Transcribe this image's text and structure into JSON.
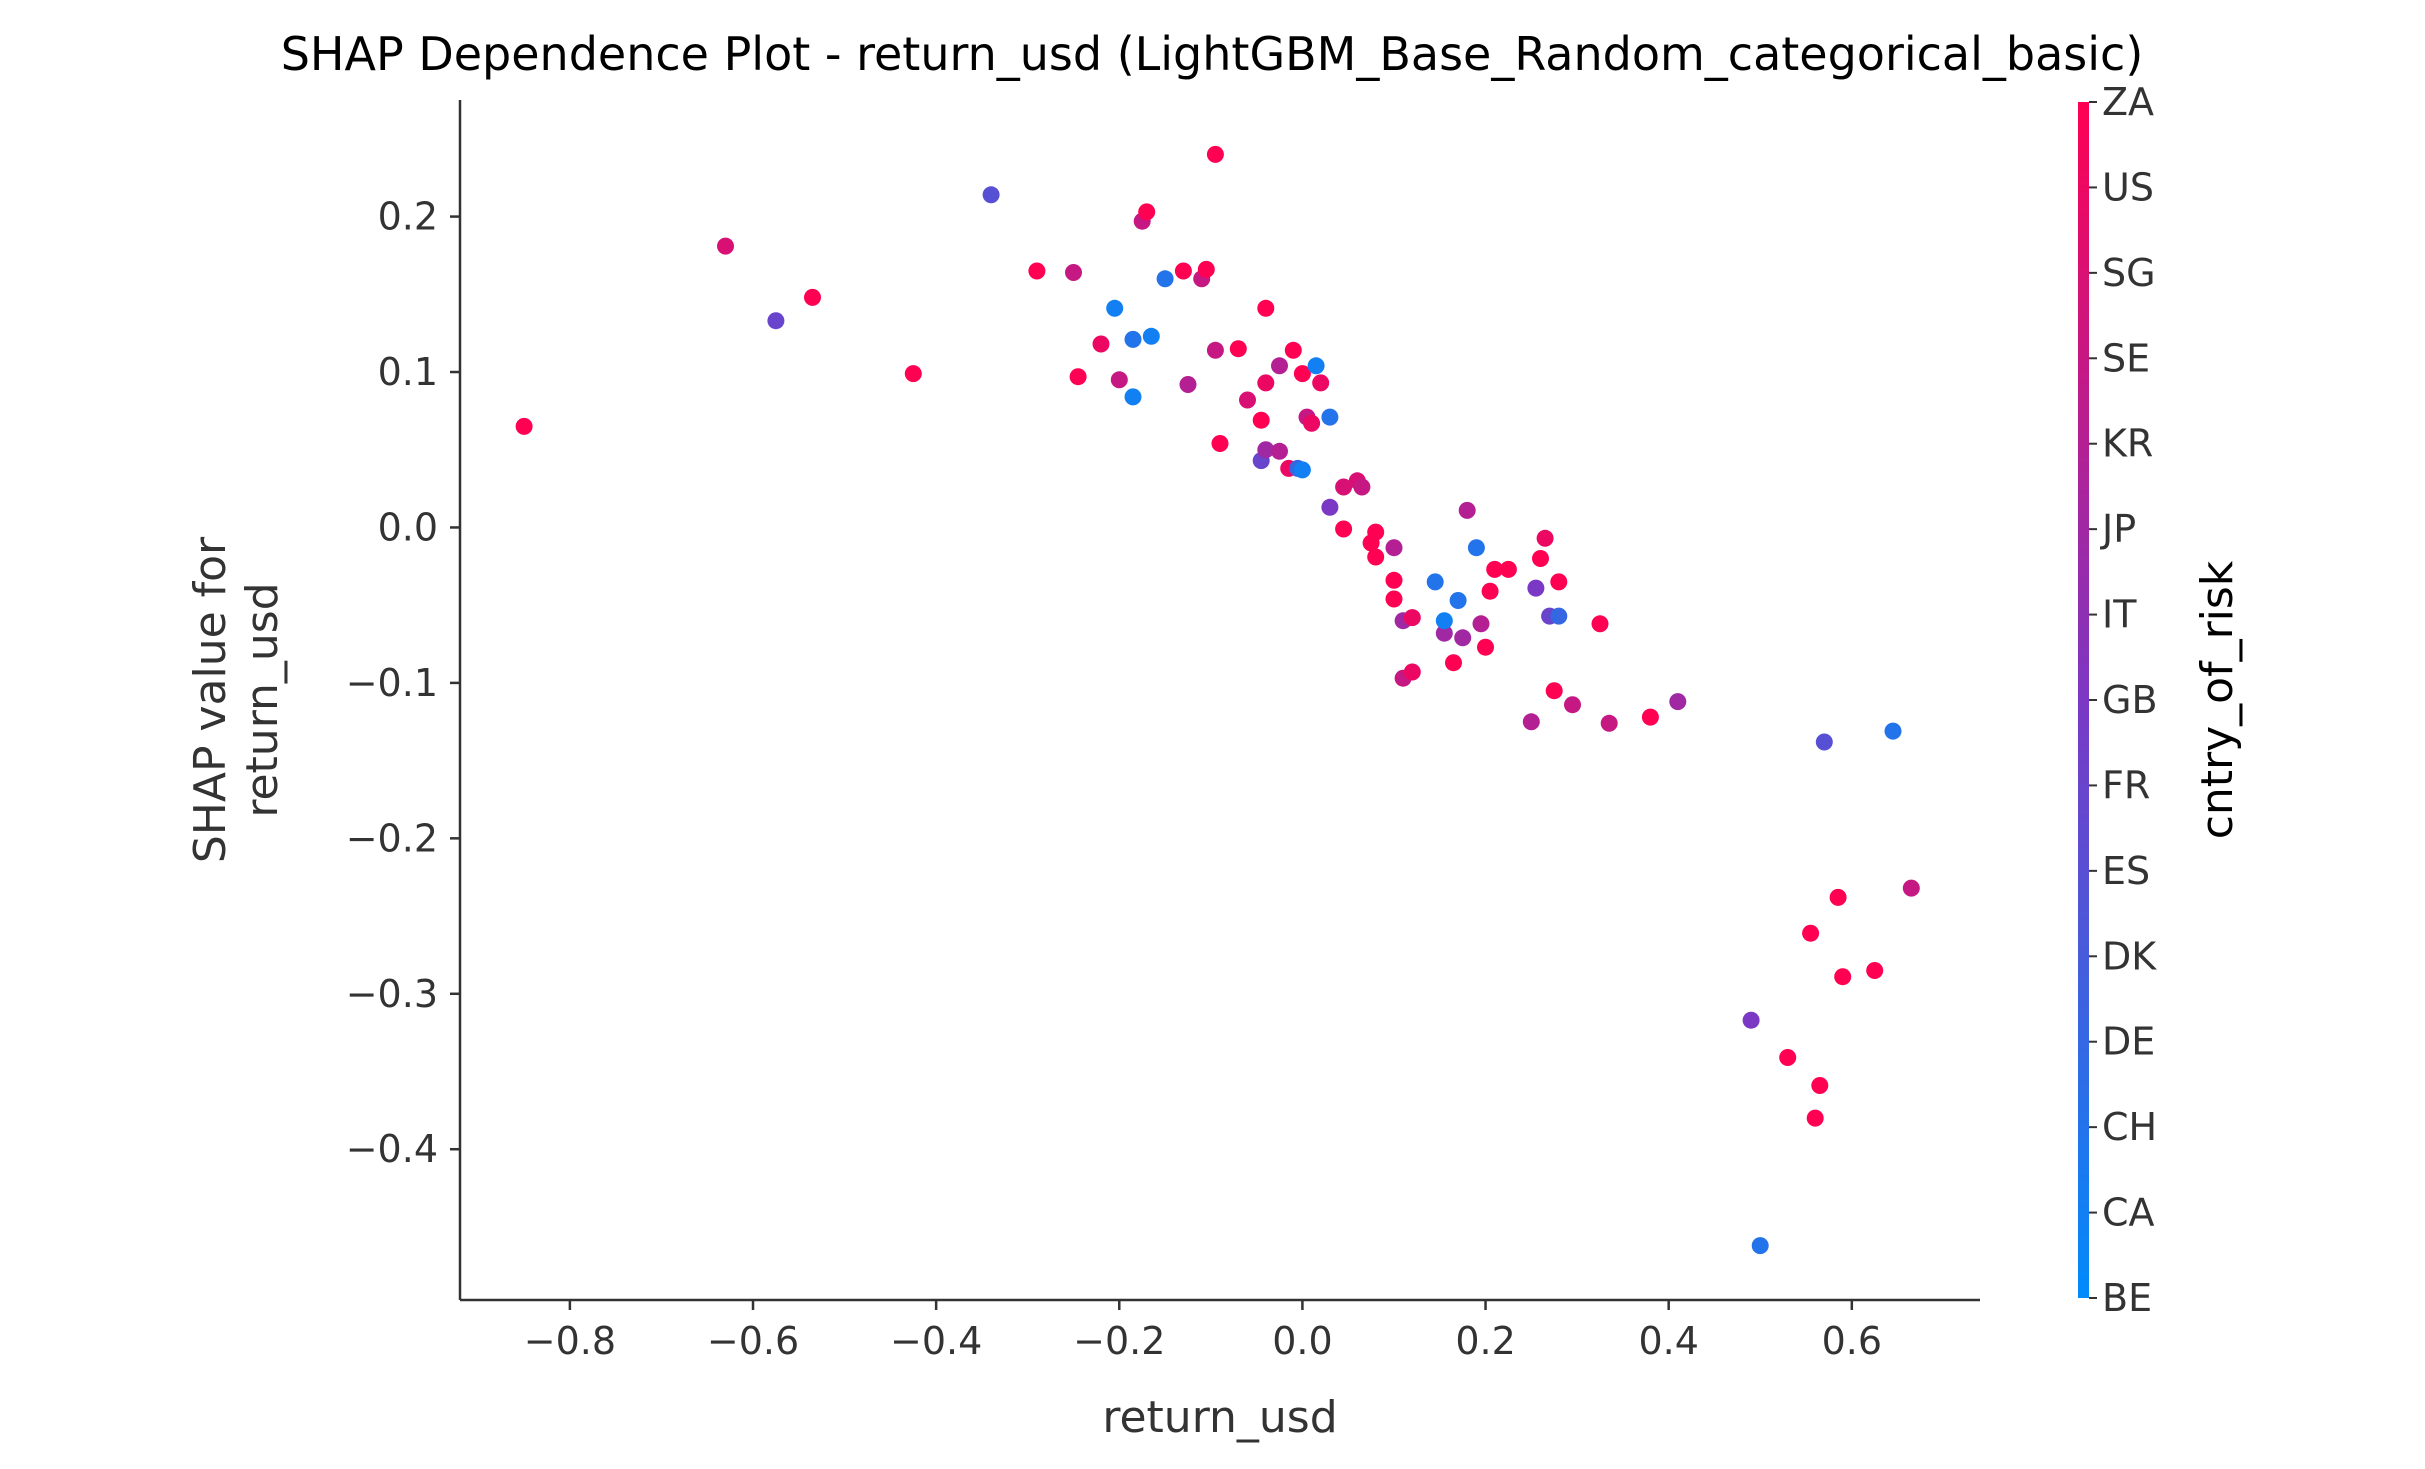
{
  "chart_data": {
    "type": "scatter",
    "title": "SHAP Dependence Plot - return_usd (LightGBM_Base_Random_categorical_basic)",
    "xlabel": "return_usd",
    "ylabel": "SHAP value for\nreturn_usd",
    "xlim": [
      -0.92,
      0.74
    ],
    "ylim": [
      -0.497,
      0.275
    ],
    "x_ticks": [
      -0.8,
      -0.6,
      -0.4,
      -0.2,
      0.0,
      0.2,
      0.4,
      0.6
    ],
    "y_ticks": [
      0.2,
      0.1,
      0.0,
      -0.1,
      -0.2,
      -0.3,
      -0.4
    ],
    "x_tick_labels": [
      "−0.8",
      "−0.6",
      "−0.4",
      "−0.2",
      "0.0",
      "0.2",
      "0.4",
      "0.6"
    ],
    "y_tick_labels": [
      "0.2",
      "0.1",
      "0.0",
      "−0.1",
      "−0.2",
      "−0.3",
      "−0.4"
    ],
    "grid": false,
    "colorbar": {
      "title": "cntry_of_risk",
      "categories": [
        "BE",
        "CA",
        "CH",
        "DE",
        "DK",
        "ES",
        "FR",
        "GB",
        "IT",
        "JP",
        "KR",
        "SE",
        "SG",
        "US",
        "ZA"
      ],
      "color_low": "#008bfb",
      "color_high": "#ff0052"
    },
    "points": [
      {
        "x": -0.85,
        "y": 0.065,
        "c": 14
      },
      {
        "x": -0.63,
        "y": 0.181,
        "c": 12
      },
      {
        "x": -0.575,
        "y": 0.133,
        "c": 6
      },
      {
        "x": -0.535,
        "y": 0.148,
        "c": 14
      },
      {
        "x": -0.425,
        "y": 0.099,
        "c": 14
      },
      {
        "x": -0.34,
        "y": 0.214,
        "c": 5
      },
      {
        "x": -0.29,
        "y": 0.165,
        "c": 14
      },
      {
        "x": -0.25,
        "y": 0.164,
        "c": 11
      },
      {
        "x": -0.245,
        "y": 0.097,
        "c": 14
      },
      {
        "x": -0.22,
        "y": 0.118,
        "c": 13
      },
      {
        "x": -0.205,
        "y": 0.141,
        "c": 1
      },
      {
        "x": -0.2,
        "y": 0.095,
        "c": 11
      },
      {
        "x": -0.185,
        "y": 0.121,
        "c": 2
      },
      {
        "x": -0.185,
        "y": 0.084,
        "c": 1
      },
      {
        "x": -0.175,
        "y": 0.197,
        "c": 11
      },
      {
        "x": -0.17,
        "y": 0.203,
        "c": 14
      },
      {
        "x": -0.165,
        "y": 0.123,
        "c": 1
      },
      {
        "x": -0.15,
        "y": 0.16,
        "c": 2
      },
      {
        "x": -0.13,
        "y": 0.165,
        "c": 14
      },
      {
        "x": -0.125,
        "y": 0.092,
        "c": 10
      },
      {
        "x": -0.11,
        "y": 0.16,
        "c": 11
      },
      {
        "x": -0.105,
        "y": 0.166,
        "c": 14
      },
      {
        "x": -0.095,
        "y": 0.24,
        "c": 14
      },
      {
        "x": -0.095,
        "y": 0.114,
        "c": 11
      },
      {
        "x": -0.09,
        "y": 0.054,
        "c": 14
      },
      {
        "x": -0.07,
        "y": 0.115,
        "c": 14
      },
      {
        "x": -0.06,
        "y": 0.082,
        "c": 12
      },
      {
        "x": -0.045,
        "y": 0.069,
        "c": 14
      },
      {
        "x": -0.045,
        "y": 0.043,
        "c": 6
      },
      {
        "x": -0.04,
        "y": 0.141,
        "c": 14
      },
      {
        "x": -0.04,
        "y": 0.093,
        "c": 13
      },
      {
        "x": -0.04,
        "y": 0.05,
        "c": 9
      },
      {
        "x": -0.025,
        "y": 0.104,
        "c": 10
      },
      {
        "x": -0.025,
        "y": 0.049,
        "c": 10
      },
      {
        "x": -0.015,
        "y": 0.038,
        "c": 13
      },
      {
        "x": -0.01,
        "y": 0.114,
        "c": 14
      },
      {
        "x": -0.005,
        "y": 0.038,
        "c": 3
      },
      {
        "x": 0.0,
        "y": 0.099,
        "c": 14
      },
      {
        "x": 0.0,
        "y": 0.037,
        "c": 1
      },
      {
        "x": 0.005,
        "y": 0.071,
        "c": 11
      },
      {
        "x": 0.01,
        "y": 0.067,
        "c": 13
      },
      {
        "x": 0.015,
        "y": 0.104,
        "c": 1
      },
      {
        "x": 0.02,
        "y": 0.093,
        "c": 13
      },
      {
        "x": 0.03,
        "y": 0.071,
        "c": 2
      },
      {
        "x": 0.03,
        "y": 0.013,
        "c": 7
      },
      {
        "x": 0.045,
        "y": -0.001,
        "c": 14
      },
      {
        "x": 0.045,
        "y": 0.026,
        "c": 12
      },
      {
        "x": 0.06,
        "y": 0.03,
        "c": 12
      },
      {
        "x": 0.065,
        "y": 0.026,
        "c": 11
      },
      {
        "x": 0.075,
        "y": -0.01,
        "c": 14
      },
      {
        "x": 0.08,
        "y": -0.003,
        "c": 14
      },
      {
        "x": 0.08,
        "y": -0.019,
        "c": 14
      },
      {
        "x": 0.1,
        "y": -0.013,
        "c": 10
      },
      {
        "x": 0.1,
        "y": -0.034,
        "c": 14
      },
      {
        "x": 0.1,
        "y": -0.046,
        "c": 14
      },
      {
        "x": 0.11,
        "y": -0.06,
        "c": 9
      },
      {
        "x": 0.11,
        "y": -0.097,
        "c": 11
      },
      {
        "x": 0.12,
        "y": -0.058,
        "c": 13
      },
      {
        "x": 0.12,
        "y": -0.093,
        "c": 13
      },
      {
        "x": 0.145,
        "y": -0.035,
        "c": 2
      },
      {
        "x": 0.155,
        "y": -0.068,
        "c": 9
      },
      {
        "x": 0.155,
        "y": -0.06,
        "c": 1
      },
      {
        "x": 0.165,
        "y": -0.087,
        "c": 14
      },
      {
        "x": 0.17,
        "y": -0.047,
        "c": 2
      },
      {
        "x": 0.175,
        "y": -0.071,
        "c": 9
      },
      {
        "x": 0.18,
        "y": 0.011,
        "c": 10
      },
      {
        "x": 0.19,
        "y": -0.013,
        "c": 2
      },
      {
        "x": 0.195,
        "y": -0.062,
        "c": 10
      },
      {
        "x": 0.2,
        "y": -0.077,
        "c": 14
      },
      {
        "x": 0.205,
        "y": -0.041,
        "c": 14
      },
      {
        "x": 0.21,
        "y": -0.027,
        "c": 14
      },
      {
        "x": 0.225,
        "y": -0.027,
        "c": 14
      },
      {
        "x": 0.25,
        "y": -0.125,
        "c": 10
      },
      {
        "x": 0.255,
        "y": -0.039,
        "c": 7
      },
      {
        "x": 0.26,
        "y": -0.02,
        "c": 14
      },
      {
        "x": 0.265,
        "y": -0.007,
        "c": 13
      },
      {
        "x": 0.27,
        "y": -0.057,
        "c": 6
      },
      {
        "x": 0.275,
        "y": -0.105,
        "c": 14
      },
      {
        "x": 0.28,
        "y": -0.035,
        "c": 14
      },
      {
        "x": 0.28,
        "y": -0.057,
        "c": 3
      },
      {
        "x": 0.295,
        "y": -0.114,
        "c": 11
      },
      {
        "x": 0.325,
        "y": -0.062,
        "c": 14
      },
      {
        "x": 0.335,
        "y": -0.126,
        "c": 11
      },
      {
        "x": 0.38,
        "y": -0.122,
        "c": 14
      },
      {
        "x": 0.41,
        "y": -0.112,
        "c": 9
      },
      {
        "x": 0.49,
        "y": -0.317,
        "c": 7
      },
      {
        "x": 0.5,
        "y": -0.462,
        "c": 2
      },
      {
        "x": 0.53,
        "y": -0.341,
        "c": 14
      },
      {
        "x": 0.555,
        "y": -0.261,
        "c": 14
      },
      {
        "x": 0.56,
        "y": -0.38,
        "c": 14
      },
      {
        "x": 0.565,
        "y": -0.359,
        "c": 14
      },
      {
        "x": 0.57,
        "y": -0.138,
        "c": 5
      },
      {
        "x": 0.585,
        "y": -0.238,
        "c": 14
      },
      {
        "x": 0.59,
        "y": -0.289,
        "c": 14
      },
      {
        "x": 0.625,
        "y": -0.285,
        "c": 14
      },
      {
        "x": 0.645,
        "y": -0.131,
        "c": 2
      },
      {
        "x": 0.665,
        "y": -0.232,
        "c": 11
      }
    ]
  }
}
